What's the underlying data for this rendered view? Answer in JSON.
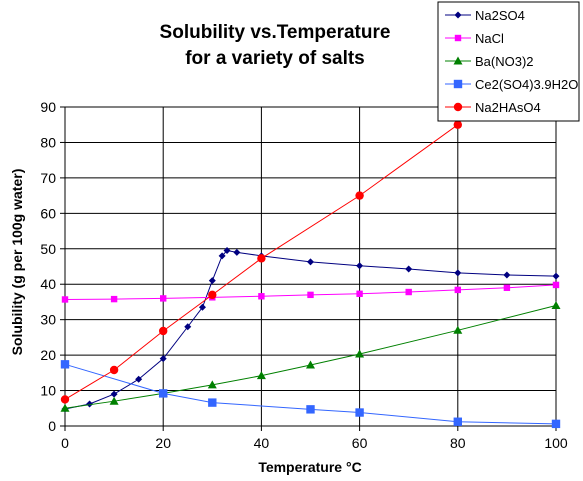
{
  "chart_data": {
    "type": "line",
    "title": [
      "Solubility vs.Temperature",
      "for a variety of salts"
    ],
    "xlabel": "Temperature  °C",
    "ylabel": "Solubility (g per 100g water)",
    "xlim": [
      0,
      100
    ],
    "ylim": [
      0,
      90
    ],
    "xticks": [
      0,
      20,
      40,
      60,
      80,
      100
    ],
    "yticks": [
      0,
      10,
      20,
      30,
      40,
      50,
      60,
      70,
      80,
      90
    ],
    "grid": true,
    "legend_position": "top-right",
    "series": [
      {
        "name": "Na2SO4",
        "color": "#000080",
        "marker": "diamond",
        "x": [
          0,
          5,
          10,
          15,
          20,
          25,
          28,
          30,
          32,
          33,
          35,
          40,
          50,
          60,
          70,
          80,
          90,
          100
        ],
        "y": [
          4.8,
          6.2,
          9.0,
          13.2,
          19.0,
          28.0,
          33.5,
          41.0,
          48.0,
          49.5,
          49.0,
          48.0,
          46.3,
          45.2,
          44.3,
          43.2,
          42.6,
          42.3
        ]
      },
      {
        "name": "NaCl",
        "color": "#ff00ff",
        "marker": "square",
        "x": [
          0,
          10,
          20,
          30,
          40,
          50,
          60,
          70,
          80,
          90,
          100
        ],
        "y": [
          35.7,
          35.8,
          36.0,
          36.3,
          36.6,
          37.0,
          37.3,
          37.8,
          38.4,
          39.0,
          39.8
        ]
      },
      {
        "name": "Ba(NO3)2",
        "color": "#008000",
        "marker": "triangle",
        "x": [
          0,
          10,
          20,
          30,
          40,
          50,
          60,
          80,
          100
        ],
        "y": [
          5.0,
          7.0,
          9.2,
          11.6,
          14.2,
          17.2,
          20.3,
          27.0,
          34.0
        ]
      },
      {
        "name": " Ce2(SO4)3.9H2O",
        "color": "#3366ff",
        "marker": "square",
        "x": [
          0,
          20,
          30,
          50,
          60,
          80,
          100
        ],
        "y": [
          17.4,
          9.2,
          6.6,
          4.7,
          3.8,
          1.2,
          0.6
        ]
      },
      {
        "name": "Na2HAsO4",
        "color": "#ff0000",
        "marker": "circle",
        "x": [
          0,
          10,
          20,
          30,
          40,
          60,
          80
        ],
        "y": [
          7.5,
          15.8,
          26.8,
          37.0,
          47.3,
          65.0,
          85.0
        ]
      }
    ]
  }
}
